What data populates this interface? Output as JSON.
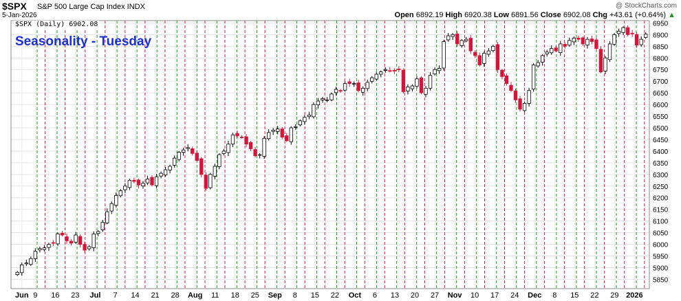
{
  "header": {
    "ticker": "$SPX",
    "description": "S&P 500 Large Cap Index INDX",
    "date": "5-Jan-2026",
    "copyright": "@ StockCharts.com",
    "open_label": "Open",
    "open": "6892.19",
    "high_label": "High",
    "high": "6920.38",
    "low_label": "Low",
    "low": "6891.56",
    "close_label": "Close",
    "close": "6902.08",
    "chg_label": "Chg",
    "chg": "+43.61 (+0.64%)"
  },
  "chart_data": {
    "type": "candlestick",
    "title": "Seasonality - Tuesday",
    "series_label": "$SPX (Daily) 6902.08",
    "ylim": [
      5810,
      6960
    ],
    "y_ticks": [
      5850,
      5900,
      5950,
      6000,
      6050,
      6100,
      6150,
      6200,
      6250,
      6300,
      6350,
      6400,
      6450,
      6500,
      6550,
      6600,
      6650,
      6700,
      6750,
      6800,
      6850,
      6900,
      6950
    ],
    "x_tick_labels": [
      "Jun",
      "9",
      "16",
      "23",
      "Jul",
      "7",
      "14",
      "21",
      "28",
      "Aug",
      "11",
      "18",
      "25",
      "Sep",
      "8",
      "15",
      "22",
      "Oct",
      "6",
      "13",
      "20",
      "27",
      "Nov",
      "10",
      "17",
      "24",
      "Dec",
      "8",
      "15",
      "22",
      "29",
      "2026"
    ],
    "bold_tick_labels": [
      "Jun",
      "Jul",
      "Aug",
      "Sep",
      "Oct",
      "Nov",
      "Dec",
      "2026"
    ],
    "up_color": "#ffffff",
    "down_color": "#d6143a",
    "wick_color": "#000000",
    "green_line_color": "#1a9a1a",
    "red_line_color": "#d6143a",
    "grid": true,
    "closes": [
      5880,
      5912,
      5920,
      5939,
      5970,
      5982,
      5985,
      6000,
      6005,
      6045,
      6040,
      6015,
      6005,
      6040,
      6000,
      5975,
      5990,
      6045,
      6055,
      6095,
      6140,
      6175,
      6210,
      6230,
      6250,
      6275,
      6270,
      6255,
      6262,
      6280,
      6255,
      6290,
      6305,
      6320,
      6335,
      6370,
      6395,
      6405,
      6415,
      6390,
      6360,
      6300,
      6240,
      6300,
      6335,
      6385,
      6400,
      6430,
      6470,
      6465,
      6460,
      6430,
      6410,
      6380,
      6385,
      6455,
      6480,
      6490,
      6495,
      6460,
      6445,
      6500,
      6505,
      6530,
      6545,
      6555,
      6600,
      6615,
      6625,
      6620,
      6645,
      6665,
      6660,
      6690,
      6690,
      6690,
      6660,
      6670,
      6695,
      6715,
      6730,
      6740,
      6750,
      6745,
      6745,
      6750,
      6655,
      6675,
      6680,
      6710,
      6650,
      6670,
      6725,
      6750,
      6755,
      6870,
      6895,
      6900,
      6860,
      6875,
      6880,
      6830,
      6810,
      6770,
      6820,
      6830,
      6850,
      6750,
      6720,
      6690,
      6660,
      6620,
      6580,
      6605,
      6660,
      6770,
      6780,
      6810,
      6825,
      6840,
      6830,
      6860,
      6850,
      6875,
      6885,
      6880,
      6860,
      6880,
      6870,
      6840,
      6740,
      6800,
      6860,
      6900,
      6915,
      6930,
      6900,
      6905,
      6855,
      6880,
      6902.08
    ],
    "green_day_index": [
      4,
      18,
      32,
      46,
      60,
      75,
      89,
      103,
      118,
      132
    ],
    "red_day_index": [
      1,
      15,
      29,
      43,
      57,
      72,
      86,
      100,
      115,
      129
    ]
  }
}
